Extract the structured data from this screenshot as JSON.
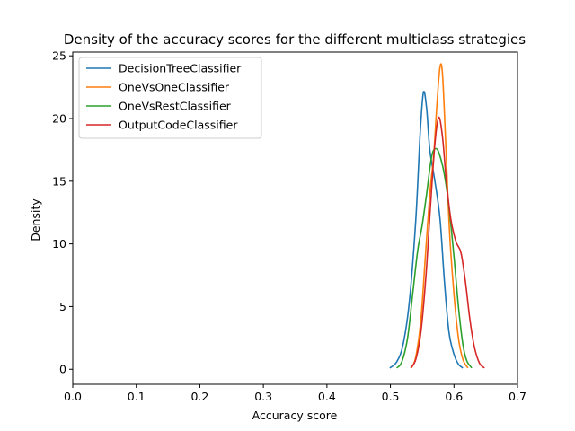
{
  "chart_data": {
    "type": "line",
    "title": "Density of the accuracy scores for the different multiclass strategies",
    "xlabel": "Accuracy score",
    "ylabel": "Density",
    "xlim": [
      0.0,
      0.7
    ],
    "ylim": [
      -1.2,
      25.3
    ],
    "xticks": [
      0.0,
      0.1,
      0.2,
      0.3,
      0.4,
      0.5,
      0.6,
      0.7
    ],
    "xtick_labels": [
      "0.0",
      "0.1",
      "0.2",
      "0.3",
      "0.4",
      "0.5",
      "0.6",
      "0.7"
    ],
    "yticks": [
      0,
      5,
      10,
      15,
      20,
      25
    ],
    "ytick_labels": [
      "0",
      "5",
      "10",
      "15",
      "20",
      "25"
    ],
    "grid": false,
    "legend_position": "top-left",
    "series": [
      {
        "name": "DecisionTreeClassifier",
        "color": "#1f77b4",
        "points": [
          [
            0.499,
            0.1
          ],
          [
            0.51,
            0.6
          ],
          [
            0.52,
            2.0
          ],
          [
            0.53,
            5.5
          ],
          [
            0.54,
            12.0
          ],
          [
            0.547,
            19.0
          ],
          [
            0.552,
            22.1
          ],
          [
            0.557,
            20.8
          ],
          [
            0.562,
            17.5
          ],
          [
            0.57,
            15.0
          ],
          [
            0.578,
            12.0
          ],
          [
            0.585,
            7.0
          ],
          [
            0.592,
            3.0
          ],
          [
            0.6,
            1.2
          ],
          [
            0.607,
            0.4
          ],
          [
            0.614,
            0.1
          ]
        ]
      },
      {
        "name": "OneVsOneClassifier",
        "color": "#ff7f0e",
        "points": [
          [
            0.533,
            0.1
          ],
          [
            0.54,
            1.0
          ],
          [
            0.548,
            4.0
          ],
          [
            0.555,
            9.0
          ],
          [
            0.562,
            14.0
          ],
          [
            0.568,
            17.0
          ],
          [
            0.573,
            21.0
          ],
          [
            0.578,
            24.1
          ],
          [
            0.582,
            23.5
          ],
          [
            0.587,
            18.0
          ],
          [
            0.593,
            11.0
          ],
          [
            0.6,
            6.0
          ],
          [
            0.607,
            2.5
          ],
          [
            0.614,
            0.8
          ],
          [
            0.622,
            0.1
          ]
        ]
      },
      {
        "name": "OneVsRestClassifier",
        "color": "#2ca02c",
        "points": [
          [
            0.51,
            0.1
          ],
          [
            0.518,
            0.6
          ],
          [
            0.527,
            2.5
          ],
          [
            0.535,
            6.0
          ],
          [
            0.543,
            9.5
          ],
          [
            0.55,
            11.5
          ],
          [
            0.557,
            14.0
          ],
          [
            0.565,
            17.0
          ],
          [
            0.572,
            17.6
          ],
          [
            0.578,
            17.0
          ],
          [
            0.585,
            15.5
          ],
          [
            0.592,
            13.0
          ],
          [
            0.6,
            9.0
          ],
          [
            0.607,
            5.0
          ],
          [
            0.614,
            2.0
          ],
          [
            0.62,
            0.7
          ],
          [
            0.628,
            0.1
          ]
        ]
      },
      {
        "name": "OutputCodeClassifier",
        "color": "#d62728",
        "points": [
          [
            0.532,
            0.1
          ],
          [
            0.54,
            0.8
          ],
          [
            0.548,
            3.0
          ],
          [
            0.556,
            7.5
          ],
          [
            0.563,
            13.0
          ],
          [
            0.57,
            18.0
          ],
          [
            0.576,
            20.1
          ],
          [
            0.582,
            18.5
          ],
          [
            0.588,
            15.0
          ],
          [
            0.595,
            12.0
          ],
          [
            0.603,
            10.2
          ],
          [
            0.611,
            9.3
          ],
          [
            0.618,
            7.0
          ],
          [
            0.625,
            4.0
          ],
          [
            0.632,
            1.8
          ],
          [
            0.64,
            0.5
          ],
          [
            0.648,
            0.1
          ]
        ]
      }
    ]
  }
}
